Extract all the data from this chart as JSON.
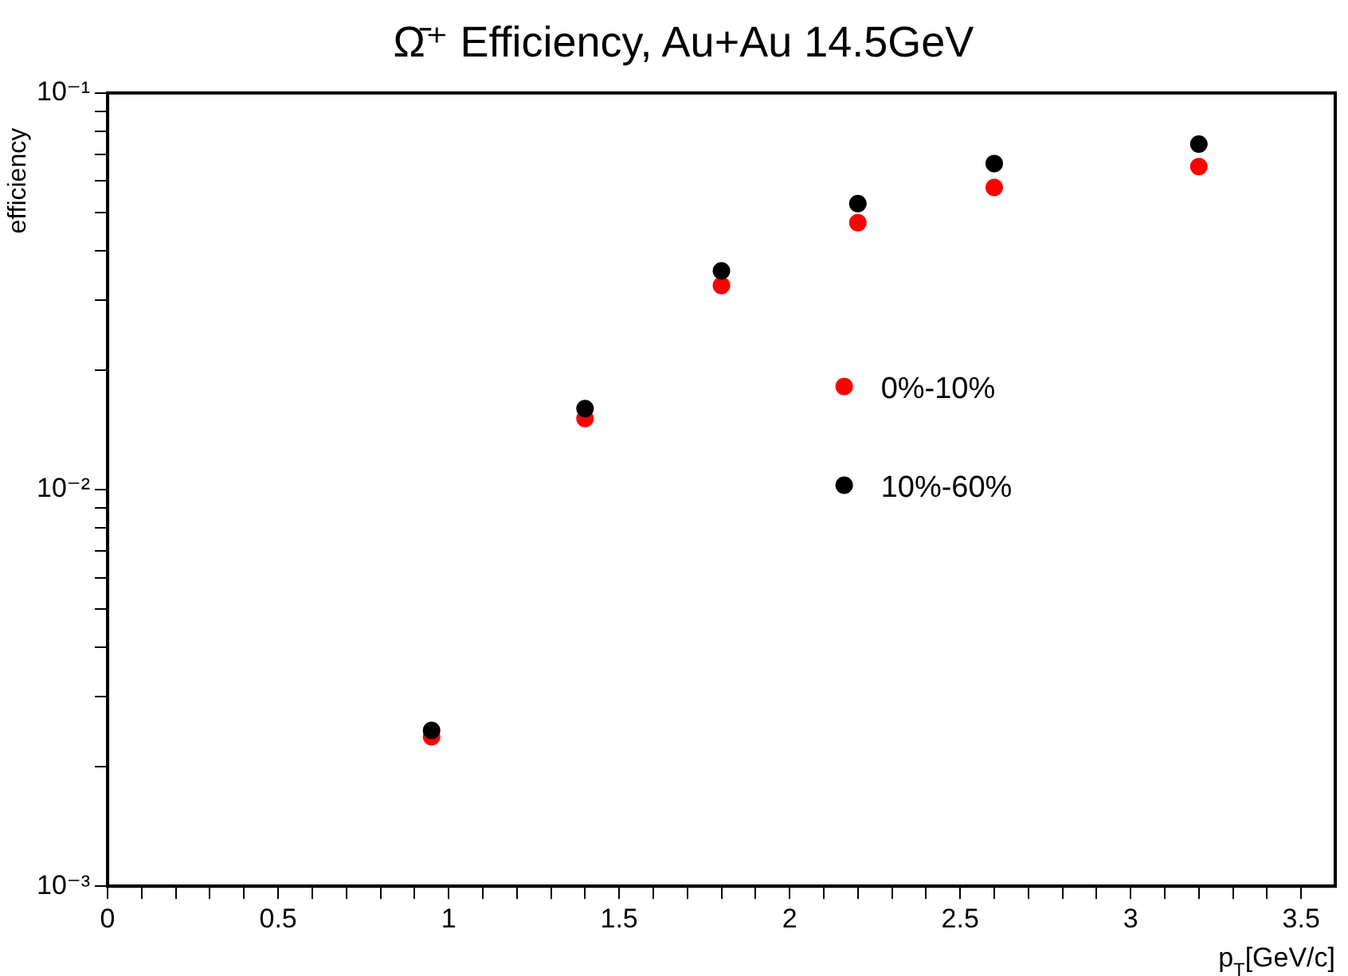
{
  "chart_data": {
    "type": "scatter",
    "title": "Ω̄⁺ Efficiency, Au+Au 14.5GeV",
    "xlabel": "p$_{T}$[GeV/c]",
    "ylabel": "efficiency",
    "x": [
      0.95,
      1.4,
      1.8,
      2.2,
      2.6,
      3.2
    ],
    "series": [
      {
        "name": "0%-10%",
        "color": "#ff0000",
        "values": [
          0.00238,
          0.0151,
          0.0327,
          0.0471,
          0.0578,
          0.0652
        ]
      },
      {
        "name": "10%-60%",
        "color": "#000000",
        "values": [
          0.00247,
          0.016,
          0.0356,
          0.0526,
          0.0664,
          0.0743
        ]
      }
    ],
    "log": "y",
    "xlim": [
      0,
      3.6
    ],
    "ylim": [
      0.001,
      0.1
    ],
    "xticks": [
      0,
      {
        "value": 0.1,
        "label": null
      },
      {
        "value": 0.2,
        "label": null
      },
      {
        "value": 0.3,
        "label": null
      },
      {
        "value": 0.4,
        "label": null
      },
      0.5,
      {
        "value": 0.6,
        "label": null
      },
      {
        "value": 0.7,
        "label": null
      },
      {
        "value": 0.8,
        "label": null
      },
      {
        "value": 0.9,
        "label": null
      },
      1,
      {
        "value": 1.1,
        "label": null
      },
      {
        "value": 1.2,
        "label": null
      },
      {
        "value": 1.3,
        "label": null
      },
      {
        "value": 1.4,
        "label": null
      },
      1.5,
      {
        "value": 1.6,
        "label": null
      },
      {
        "value": 1.7,
        "label": null
      },
      {
        "value": 1.8,
        "label": null
      },
      {
        "value": 1.9,
        "label": null
      },
      2,
      {
        "value": 2.1,
        "label": null
      },
      {
        "value": 2.2,
        "label": null
      },
      {
        "value": 2.3,
        "label": null
      },
      {
        "value": 2.4,
        "label": null
      },
      2.5,
      {
        "value": 2.6,
        "label": null
      },
      {
        "value": 2.7,
        "label": null
      },
      {
        "value": 2.8,
        "label": null
      },
      {
        "value": 2.9,
        "label": null
      },
      3,
      {
        "value": 3.1,
        "label": null
      },
      {
        "value": 3.2,
        "label": null
      },
      {
        "value": 3.3,
        "label": null
      },
      {
        "value": 3.4,
        "label": null
      },
      3.5
    ],
    "yticks": [
      {
        "value": 0.001,
        "label": "10⁻³"
      },
      {
        "value": 0.002,
        "label": null
      },
      {
        "value": 0.003,
        "label": null
      },
      {
        "value": 0.004,
        "label": null
      },
      {
        "value": 0.005,
        "label": null
      },
      {
        "value": 0.006,
        "label": null
      },
      {
        "value": 0.007,
        "label": null
      },
      {
        "value": 0.008,
        "label": null
      },
      {
        "value": 0.009,
        "label": null
      },
      {
        "value": 0.01,
        "label": "10⁻²"
      },
      {
        "value": 0.02,
        "label": null
      },
      {
        "value": 0.03,
        "label": null
      },
      {
        "value": 0.04,
        "label": null
      },
      {
        "value": 0.05,
        "label": null
      },
      {
        "value": 0.06,
        "label": null
      },
      {
        "value": 0.07,
        "label": null
      },
      {
        "value": 0.08,
        "label": null
      },
      {
        "value": 0.09,
        "label": null
      },
      {
        "value": 0.1,
        "label": "10⁻¹"
      }
    ],
    "grid": false,
    "legend": "right",
    "marker": "circle"
  }
}
